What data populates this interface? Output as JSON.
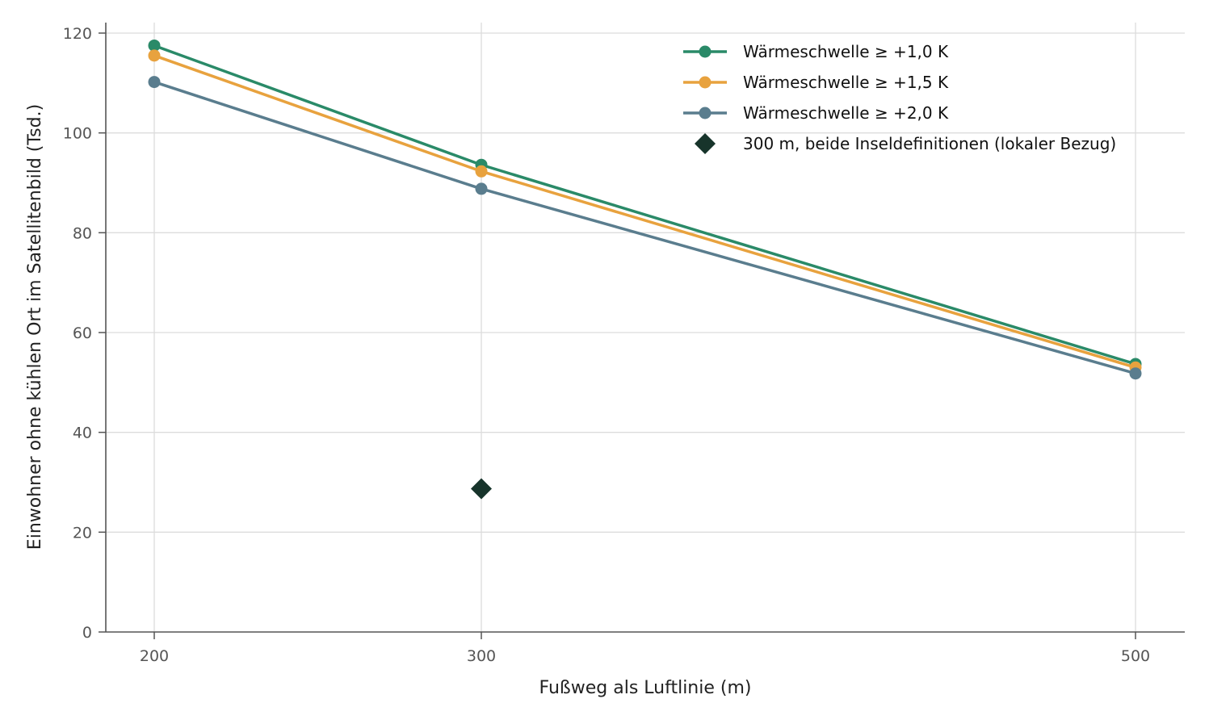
{
  "chart_data": {
    "type": "line",
    "xlabel": "Fußweg als Luftlinie (m)",
    "ylabel": "Einwohner ohne kühlen Ort im Satellitenbild (Tsd.)",
    "x_ticks": [
      200,
      300,
      500
    ],
    "x_tick_labels": [
      "200",
      "300",
      "500"
    ],
    "xlim": [
      185,
      515
    ],
    "y_ticks": [
      0,
      20,
      40,
      60,
      80,
      100,
      120
    ],
    "y_tick_labels": [
      "0",
      "20",
      "40",
      "60",
      "80",
      "100",
      "120"
    ],
    "ylim": [
      0,
      122
    ],
    "grid": true,
    "legend_position": "top-right",
    "series": [
      {
        "name": "Wärmeschwelle ≥ +1,0 K",
        "color": "#2a8a68",
        "marker": "circle",
        "x": [
          200,
          300,
          500
        ],
        "y": [
          117.5,
          93.6,
          53.7
        ]
      },
      {
        "name": "Wärmeschwelle ≥ +1,5 K",
        "color": "#e8a23e",
        "marker": "circle",
        "x": [
          200,
          300,
          500
        ],
        "y": [
          115.5,
          92.3,
          53.0
        ]
      },
      {
        "name": "Wärmeschwelle ≥ +2,0 K",
        "color": "#5a7d8e",
        "marker": "circle",
        "x": [
          200,
          300,
          500
        ],
        "y": [
          110.2,
          88.8,
          51.8
        ]
      }
    ],
    "points": [
      {
        "name": "300 m, beide Inseldefinitionen (lokaler Bezug)",
        "color": "#17342b",
        "marker": "diamond",
        "x": 300,
        "y": 28.7
      }
    ]
  }
}
